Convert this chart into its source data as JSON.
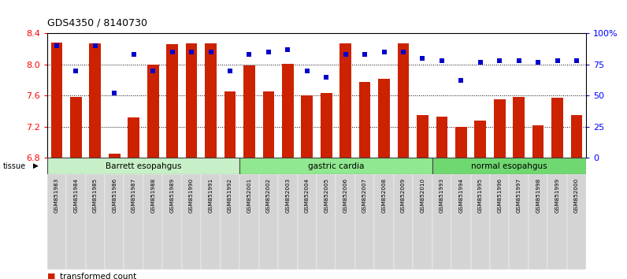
{
  "title": "GDS4350 / 8140730",
  "samples": [
    "GSM851983",
    "GSM851984",
    "GSM851985",
    "GSM851986",
    "GSM851987",
    "GSM851988",
    "GSM851989",
    "GSM851990",
    "GSM851991",
    "GSM851992",
    "GSM852001",
    "GSM852002",
    "GSM852003",
    "GSM852004",
    "GSM852005",
    "GSM852006",
    "GSM852007",
    "GSM852008",
    "GSM852009",
    "GSM852010",
    "GSM851993",
    "GSM851994",
    "GSM851995",
    "GSM851996",
    "GSM851997",
    "GSM851998",
    "GSM851999",
    "GSM852000"
  ],
  "bar_values": [
    8.28,
    7.58,
    8.27,
    6.85,
    7.32,
    8.0,
    8.26,
    8.27,
    8.27,
    7.65,
    7.99,
    7.65,
    8.01,
    7.6,
    7.63,
    8.27,
    7.78,
    7.82,
    8.27,
    7.35,
    7.33,
    7.2,
    7.28,
    7.55,
    7.58,
    7.22,
    7.57,
    7.35
  ],
  "percentile_values": [
    90,
    70,
    90,
    52,
    83,
    70,
    85,
    85,
    85,
    70,
    83,
    85,
    87,
    70,
    65,
    83,
    83,
    85,
    85,
    80,
    78,
    62,
    77,
    78,
    78,
    77,
    78,
    78
  ],
  "groups": [
    {
      "label": "Barrett esopahgus",
      "start": 0,
      "end": 10,
      "color": "#c8f0c8"
    },
    {
      "label": "gastric cardia",
      "start": 10,
      "end": 20,
      "color": "#90e890"
    },
    {
      "label": "normal esopahgus",
      "start": 20,
      "end": 28,
      "color": "#70d870"
    }
  ],
  "ylim_left": [
    6.8,
    8.4
  ],
  "ylim_right": [
    0,
    100
  ],
  "bar_color": "#cc2200",
  "dot_color": "#0000cc",
  "background_color": "#ffffff",
  "yticks_left": [
    6.8,
    7.2,
    7.6,
    8.0,
    8.4
  ],
  "yticks_right": [
    0,
    25,
    50,
    75,
    100
  ],
  "ytick_labels_right": [
    "0",
    "25",
    "50",
    "75",
    "100%"
  ],
  "xtick_bg": "#d4d4d4",
  "bar_width": 0.6
}
